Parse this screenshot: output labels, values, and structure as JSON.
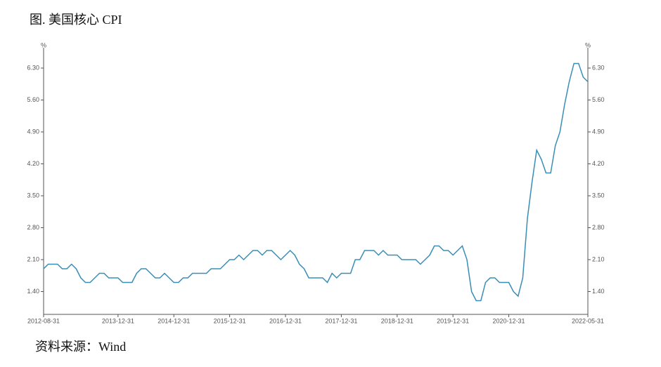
{
  "chart_data": {
    "type": "line",
    "title": "图. 美国核心 CPI",
    "y_unit": "%",
    "source": "资料来源：Wind",
    "categories": [
      "2012-08-31",
      null,
      null,
      null,
      null,
      null,
      null,
      null,
      null,
      null,
      null,
      null,
      null,
      null,
      null,
      null,
      "2013-12-31",
      null,
      null,
      null,
      null,
      null,
      null,
      null,
      null,
      null,
      null,
      null,
      "2014-12-31",
      null,
      null,
      null,
      null,
      null,
      null,
      null,
      null,
      null,
      null,
      null,
      "2015-12-31",
      null,
      null,
      null,
      null,
      null,
      null,
      null,
      null,
      null,
      null,
      null,
      "2016-12-31",
      null,
      null,
      null,
      null,
      null,
      null,
      null,
      null,
      null,
      null,
      null,
      "2017-12-31",
      null,
      null,
      null,
      null,
      null,
      null,
      null,
      null,
      null,
      null,
      null,
      "2018-12-31",
      null,
      null,
      null,
      null,
      null,
      null,
      null,
      null,
      null,
      null,
      null,
      "2019-12-31",
      null,
      null,
      null,
      null,
      null,
      null,
      null,
      null,
      null,
      null,
      null,
      "2020-12-31",
      null,
      null,
      null,
      null,
      null,
      null,
      null,
      null,
      null,
      null,
      null,
      null,
      null,
      null,
      null,
      null,
      "2022-05-31"
    ],
    "series": [
      {
        "name": "美国核心CPI",
        "color": "#3a8db5",
        "values": [
          1.9,
          2.0,
          2.0,
          2.0,
          1.9,
          1.9,
          2.0,
          1.9,
          1.7,
          1.6,
          1.6,
          1.7,
          1.8,
          1.8,
          1.7,
          1.7,
          1.7,
          1.6,
          1.6,
          1.6,
          1.8,
          1.9,
          1.9,
          1.8,
          1.7,
          1.7,
          1.8,
          1.7,
          1.6,
          1.6,
          1.7,
          1.7,
          1.8,
          1.8,
          1.8,
          1.8,
          1.9,
          1.9,
          1.9,
          2.0,
          2.1,
          2.1,
          2.2,
          2.1,
          2.2,
          2.3,
          2.3,
          2.2,
          2.3,
          2.3,
          2.2,
          2.1,
          2.2,
          2.3,
          2.2,
          2.0,
          1.9,
          1.7,
          1.7,
          1.7,
          1.7,
          1.6,
          1.8,
          1.7,
          1.8,
          1.8,
          1.8,
          2.1,
          2.1,
          2.3,
          2.3,
          2.3,
          2.2,
          2.3,
          2.2,
          2.2,
          2.2,
          2.1,
          2.1,
          2.1,
          2.1,
          2.0,
          2.1,
          2.2,
          2.4,
          2.4,
          2.3,
          2.3,
          2.2,
          2.3,
          2.4,
          2.1,
          1.4,
          1.2,
          1.2,
          1.6,
          1.7,
          1.7,
          1.6,
          1.6,
          1.6,
          1.4,
          1.3,
          1.7,
          3.0,
          3.8,
          4.5,
          4.3,
          4.0,
          4.0,
          4.6,
          4.9,
          5.5,
          6.0,
          6.4,
          6.4,
          6.1,
          6.0
        ]
      }
    ],
    "ylim": [
      0.9,
      6.7
    ],
    "yticks": [
      {
        "value": 1.4,
        "label": "1.40"
      },
      {
        "value": 2.1,
        "label": "2.10"
      },
      {
        "value": 2.8,
        "label": "2.80"
      },
      {
        "value": 3.5,
        "label": "3.50"
      },
      {
        "value": 4.2,
        "label": "4.20"
      },
      {
        "value": 4.9,
        "label": "4.90"
      },
      {
        "value": 5.6,
        "label": "5.60"
      },
      {
        "value": 6.3,
        "label": "6.30"
      }
    ],
    "grid": false
  }
}
